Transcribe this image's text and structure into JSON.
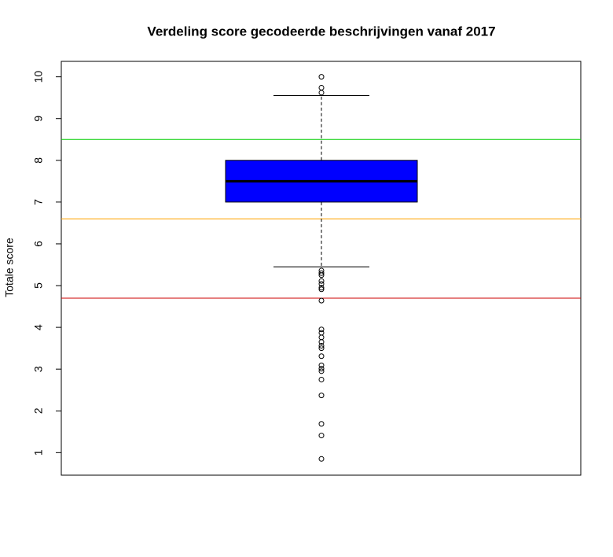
{
  "chart_data": {
    "type": "box",
    "title": "Verdeling score gecodeerde beschrijvingen vanaf 2017",
    "y_label": "Totale score",
    "ylim": [
      0.46,
      10.37
    ],
    "yticks": [
      1,
      2,
      3,
      4,
      5,
      6,
      7,
      8,
      9,
      10
    ],
    "box": {
      "color": "#0000ff",
      "whisker_low": 5.45,
      "q1": 7.0,
      "median": 7.5,
      "q3": 8.0,
      "whisker_high": 9.55,
      "outliers": [
        10,
        9.74,
        9.62,
        5.36,
        5.3,
        5.25,
        5.11,
        5.04,
        4.95,
        4.91,
        4.64,
        3.95,
        3.87,
        3.76,
        3.65,
        3.56,
        3.5,
        3.31,
        3.09,
        3.01,
        2.95,
        2.75,
        2.37,
        1.69,
        1.41,
        0.85
      ]
    },
    "reference_lines": [
      {
        "value": 8.5,
        "color": "#00cd00"
      },
      {
        "value": 6.6,
        "color": "#ffa500"
      },
      {
        "value": 4.7,
        "color": "#cd0000"
      }
    ]
  }
}
